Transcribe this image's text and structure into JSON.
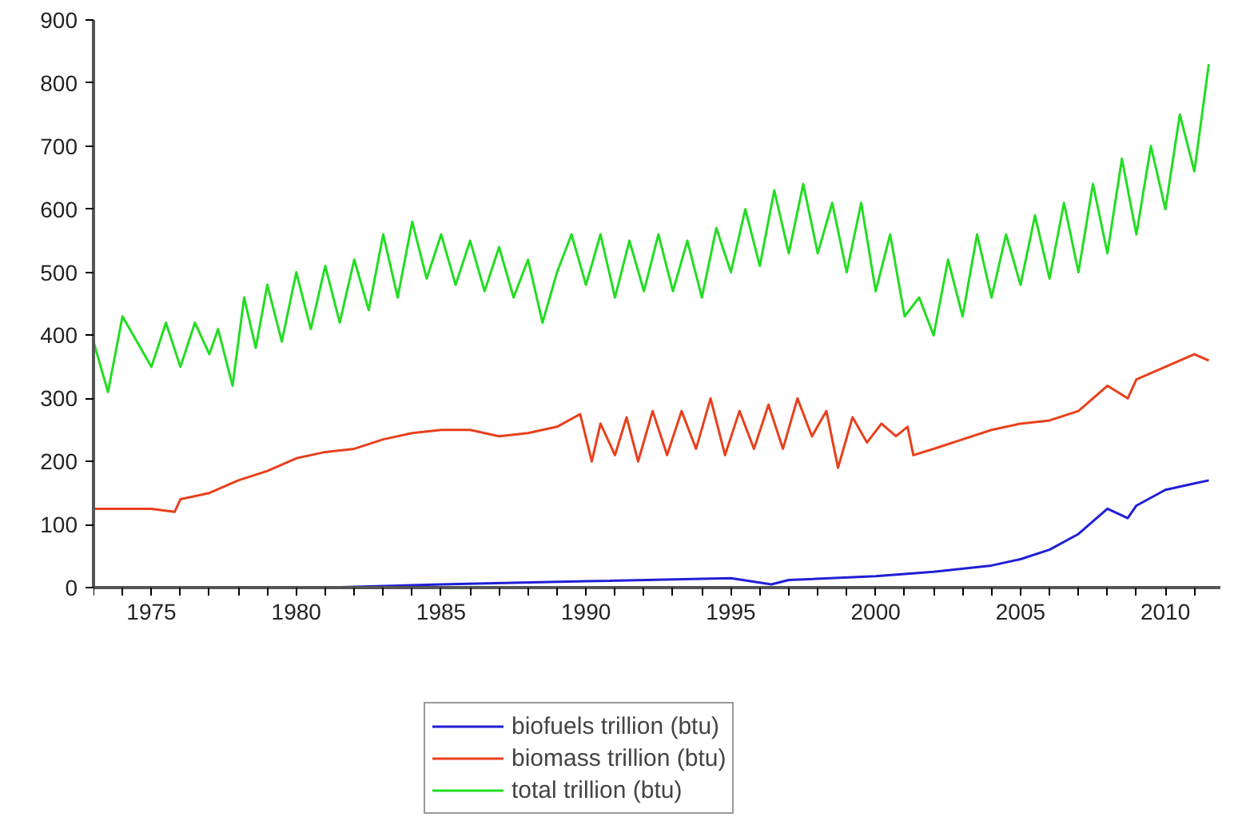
{
  "chart_data": {
    "type": "line",
    "xlim": [
      1973,
      2011.9
    ],
    "ylim": [
      0,
      900
    ],
    "xticks": [
      {
        "value": 1973,
        "label": null
      },
      {
        "value": 1974,
        "label": null
      },
      1975,
      {
        "value": 1976,
        "label": null
      },
      {
        "value": 1977,
        "label": null
      },
      {
        "value": 1978,
        "label": null
      },
      {
        "value": 1979,
        "label": null
      },
      1980,
      {
        "value": 1981,
        "label": null
      },
      {
        "value": 1982,
        "label": null
      },
      {
        "value": 1983,
        "label": null
      },
      {
        "value": 1984,
        "label": null
      },
      1985,
      {
        "value": 1986,
        "label": null
      },
      {
        "value": 1987,
        "label": null
      },
      {
        "value": 1988,
        "label": null
      },
      {
        "value": 1989,
        "label": null
      },
      1990,
      {
        "value": 1991,
        "label": null
      },
      {
        "value": 1992,
        "label": null
      },
      {
        "value": 1993,
        "label": null
      },
      {
        "value": 1994,
        "label": null
      },
      1995,
      {
        "value": 1996,
        "label": null
      },
      {
        "value": 1997,
        "label": null
      },
      {
        "value": 1998,
        "label": null
      },
      {
        "value": 1999,
        "label": null
      },
      2000,
      {
        "value": 2001,
        "label": null
      },
      {
        "value": 2002,
        "label": null
      },
      {
        "value": 2003,
        "label": null
      },
      {
        "value": 2004,
        "label": null
      },
      2005,
      {
        "value": 2006,
        "label": null
      },
      {
        "value": 2007,
        "label": null
      },
      {
        "value": 2008,
        "label": null
      },
      {
        "value": 2009,
        "label": null
      },
      2010,
      {
        "value": 2011,
        "label": null
      }
    ],
    "yticks": [
      0,
      100,
      200,
      300,
      400,
      500,
      600,
      700,
      800,
      900
    ],
    "grid": false,
    "legend": "bottom",
    "line_style": "solid",
    "marker": "none",
    "series": [
      {
        "name": "biofuels trillion (btu)",
        "color": "#1f1fd6",
        "x": [
          1981,
          1985,
          1990,
          1995,
          1996.4,
          1997,
          2000,
          2002,
          2004,
          2005,
          2006,
          2007,
          2008,
          2008.7,
          2009,
          2010,
          2011,
          2011.5
        ],
        "values": [
          0,
          5,
          10,
          15,
          5,
          12,
          18,
          25,
          35,
          45,
          60,
          85,
          125,
          110,
          130,
          155,
          165,
          170
        ]
      },
      {
        "name": "biomass trillion (btu)",
        "color": "#e8401c",
        "x": [
          1973,
          1975,
          1975.8,
          1976,
          1977,
          1978,
          1979,
          1980,
          1981,
          1982,
          1983,
          1984,
          1985,
          1986,
          1987,
          1988,
          1989,
          1989.8,
          1990.2,
          1990.5,
          1991,
          1991.4,
          1991.8,
          1992.3,
          1992.8,
          1993.3,
          1993.8,
          1994.3,
          1994.8,
          1995.3,
          1995.8,
          1996.3,
          1996.8,
          1997.3,
          1997.8,
          1998.3,
          1998.7,
          1999.2,
          1999.7,
          2000.2,
          2000.7,
          2001.1,
          2001.3,
          2002,
          2003,
          2004,
          2005,
          2006,
          2007,
          2008,
          2008.7,
          2009,
          2010,
          2011,
          2011.5
        ],
        "values": [
          125,
          125,
          120,
          140,
          150,
          170,
          185,
          205,
          215,
          220,
          235,
          245,
          250,
          250,
          240,
          245,
          255,
          275,
          200,
          260,
          210,
          270,
          200,
          280,
          210,
          280,
          220,
          300,
          210,
          280,
          220,
          290,
          220,
          300,
          240,
          280,
          190,
          270,
          230,
          260,
          240,
          255,
          210,
          220,
          235,
          250,
          260,
          265,
          280,
          320,
          300,
          330,
          350,
          370,
          360
        ]
      },
      {
        "name": "total trillion (btu)",
        "color": "#22dd22",
        "x": [
          1973,
          1973.5,
          1974,
          1975,
          1975.5,
          1976,
          1976.5,
          1977,
          1977.3,
          1977.8,
          1978.2,
          1978.6,
          1979,
          1979.5,
          1980,
          1980.5,
          1981,
          1981.5,
          1982,
          1982.5,
          1983,
          1983.5,
          1984,
          1984.5,
          1985,
          1985.5,
          1986,
          1986.5,
          1987,
          1987.5,
          1988,
          1988.5,
          1989,
          1989.5,
          1990,
          1990.5,
          1991,
          1991.5,
          1992,
          1992.5,
          1993,
          1993.5,
          1994,
          1994.5,
          1995,
          1995.5,
          1996,
          1996.5,
          1997,
          1997.5,
          1998,
          1998.5,
          1999,
          1999.5,
          2000,
          2000.5,
          2001,
          2001.5,
          2002,
          2002.5,
          2003,
          2003.5,
          2004,
          2004.5,
          2005,
          2005.5,
          2006,
          2006.5,
          2007,
          2007.5,
          2008,
          2008.5,
          2009,
          2009.5,
          2010,
          2010.5,
          2011,
          2011.5
        ],
        "values": [
          390,
          310,
          430,
          350,
          420,
          350,
          420,
          370,
          410,
          320,
          460,
          380,
          480,
          390,
          500,
          410,
          510,
          420,
          520,
          440,
          560,
          460,
          580,
          490,
          560,
          480,
          550,
          470,
          540,
          460,
          520,
          420,
          500,
          560,
          480,
          560,
          460,
          550,
          470,
          560,
          470,
          550,
          460,
          570,
          500,
          600,
          510,
          630,
          530,
          640,
          530,
          610,
          500,
          610,
          470,
          560,
          430,
          460,
          400,
          520,
          430,
          560,
          460,
          560,
          480,
          590,
          490,
          610,
          500,
          640,
          530,
          680,
          560,
          700,
          600,
          750,
          660,
          830
        ]
      }
    ]
  }
}
